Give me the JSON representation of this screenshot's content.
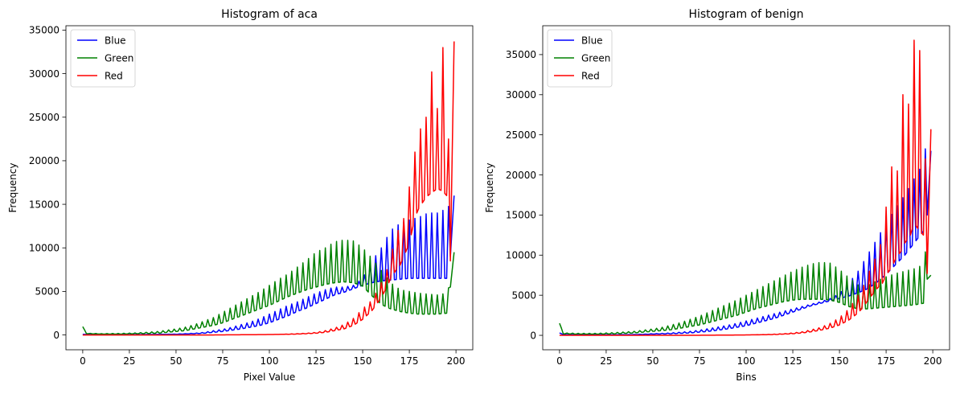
{
  "chart_data": [
    {
      "type": "line",
      "title": "Histogram of aca",
      "xlabel": "Pixel Value",
      "ylabel": "Frequency",
      "xlim": [
        -9,
        209
      ],
      "ylim": [
        -1700,
        35500
      ],
      "xticks": [
        0,
        25,
        50,
        75,
        100,
        125,
        150,
        175,
        200
      ],
      "yticks": [
        0,
        5000,
        10000,
        15000,
        20000,
        25000,
        30000,
        35000
      ],
      "grid": false,
      "legend": "top-left",
      "series": [
        {
          "name": "Blue",
          "color": "#0000ff",
          "x": [
            0,
            2,
            10,
            20,
            30,
            40,
            50,
            60,
            65,
            70,
            75,
            80,
            85,
            90,
            95,
            100,
            105,
            110,
            115,
            120,
            125,
            130,
            135,
            140,
            145,
            150,
            155,
            160,
            165,
            170,
            175,
            180,
            185,
            190,
            195,
            197,
            199
          ],
          "peak": [
            80,
            50,
            40,
            40,
            40,
            60,
            100,
            200,
            300,
            500,
            650,
            900,
            1200,
            1500,
            1900,
            2400,
            2900,
            3400,
            3800,
            4300,
            4800,
            5200,
            5500,
            5500,
            5700,
            6500,
            8500,
            10000,
            12000,
            12800,
            13200,
            13500,
            14000,
            14000,
            14500,
            15000,
            16000
          ],
          "trough": [
            80,
            50,
            40,
            40,
            40,
            60,
            80,
            150,
            200,
            300,
            400,
            550,
            700,
            900,
            1100,
            1400,
            1800,
            2200,
            2700,
            3100,
            3600,
            4100,
            4600,
            4900,
            5300,
            5700,
            6000,
            6200,
            6300,
            6400,
            6500,
            6500,
            6500,
            6500,
            6500,
            9000,
            16000
          ]
        },
        {
          "name": "Green",
          "color": "#008000",
          "x": [
            0,
            2,
            10,
            20,
            30,
            40,
            50,
            55,
            60,
            65,
            70,
            75,
            80,
            85,
            90,
            95,
            100,
            105,
            110,
            115,
            120,
            125,
            130,
            135,
            140,
            145,
            150,
            155,
            160,
            165,
            170,
            175,
            180,
            185,
            190,
            195,
            197,
            199
          ],
          "peak": [
            950,
            200,
            150,
            180,
            250,
            400,
            700,
            900,
            1200,
            1600,
            2000,
            2600,
            3200,
            3800,
            4400,
            5000,
            5700,
            6400,
            7000,
            7800,
            8600,
            9500,
            10000,
            10700,
            10900,
            10800,
            10000,
            8800,
            7400,
            6000,
            5200,
            5000,
            4800,
            4700,
            4600,
            4800,
            6000,
            9500
          ],
          "trough": [
            950,
            150,
            100,
            100,
            150,
            200,
            400,
            500,
            700,
            900,
            1100,
            1400,
            1800,
            2200,
            2600,
            3000,
            3400,
            3900,
            4400,
            4800,
            5200,
            5500,
            5800,
            6000,
            6100,
            6000,
            5600,
            4500,
            3500,
            3000,
            2700,
            2500,
            2400,
            2400,
            2400,
            2500,
            5500,
            9500
          ]
        },
        {
          "name": "Red",
          "color": "#ff0000",
          "x": [
            0,
            10,
            20,
            30,
            40,
            50,
            60,
            70,
            80,
            90,
            100,
            110,
            115,
            120,
            125,
            130,
            135,
            140,
            145,
            150,
            155,
            160,
            163,
            165,
            168,
            170,
            173,
            175,
            178,
            180,
            183,
            185,
            188,
            190,
            193,
            195,
            197,
            199
          ],
          "peak": [
            0,
            0,
            0,
            0,
            0,
            0,
            0,
            0,
            20,
            30,
            50,
            100,
            150,
            200,
            300,
            500,
            800,
            1200,
            1900,
            3000,
            4000,
            6000,
            7500,
            9000,
            11500,
            12500,
            13800,
            17000,
            21000,
            22000,
            27000,
            23000,
            33800,
            26000,
            33000,
            29000,
            16000,
            33700
          ],
          "trough": [
            0,
            0,
            0,
            0,
            0,
            0,
            0,
            0,
            20,
            30,
            50,
            80,
            100,
            150,
            200,
            300,
            500,
            700,
            1100,
            1800,
            2800,
            4300,
            5500,
            6500,
            7500,
            8000,
            9500,
            10500,
            13500,
            14500,
            15500,
            16000,
            16500,
            16800,
            16500,
            16000,
            8500,
            33700
          ]
        }
      ]
    },
    {
      "type": "line",
      "title": "Histogram of benign",
      "xlabel": "Bins",
      "ylabel": "Frequency",
      "xlim": [
        -9,
        209
      ],
      "ylim": [
        -1800,
        38600
      ],
      "xticks": [
        0,
        25,
        50,
        75,
        100,
        125,
        150,
        175,
        200
      ],
      "yticks": [
        0,
        5000,
        10000,
        15000,
        20000,
        25000,
        30000,
        35000
      ],
      "grid": false,
      "legend": "top-left",
      "series": [
        {
          "name": "Blue",
          "color": "#0000ff",
          "x": [
            0,
            2,
            10,
            20,
            30,
            40,
            50,
            60,
            65,
            70,
            75,
            80,
            85,
            90,
            95,
            100,
            105,
            110,
            115,
            120,
            125,
            130,
            135,
            140,
            145,
            150,
            155,
            160,
            165,
            170,
            175,
            180,
            185,
            190,
            195,
            197,
            199
          ],
          "peak": [
            300,
            100,
            80,
            80,
            80,
            100,
            200,
            300,
            400,
            500,
            650,
            850,
            1050,
            1250,
            1500,
            1800,
            2100,
            2400,
            2700,
            3000,
            3300,
            3600,
            3900,
            4200,
            4600,
            5200,
            6500,
            8000,
            10000,
            12000,
            14000,
            15800,
            17500,
            19500,
            21500,
            25000,
            23000
          ],
          "trough": [
            300,
            80,
            60,
            60,
            60,
            80,
            150,
            200,
            250,
            300,
            400,
            500,
            650,
            800,
            1000,
            1200,
            1500,
            1800,
            2100,
            2500,
            2900,
            3300,
            3700,
            4000,
            4300,
            4600,
            4900,
            5300,
            5800,
            6600,
            7600,
            8800,
            10000,
            11500,
            13000,
            15000,
            23000
          ]
        },
        {
          "name": "Green",
          "color": "#008000",
          "x": [
            0,
            2,
            10,
            20,
            30,
            40,
            50,
            55,
            60,
            65,
            70,
            75,
            80,
            85,
            90,
            95,
            100,
            105,
            110,
            115,
            120,
            125,
            130,
            135,
            140,
            145,
            150,
            155,
            160,
            165,
            170,
            175,
            180,
            185,
            190,
            195,
            197,
            199
          ],
          "peak": [
            1500,
            300,
            250,
            250,
            350,
            500,
            800,
            1000,
            1300,
            1600,
            2000,
            2400,
            2900,
            3400,
            3900,
            4400,
            5000,
            5600,
            6200,
            6800,
            7400,
            8000,
            8500,
            8900,
            9100,
            9000,
            8200,
            7200,
            6300,
            6200,
            6800,
            7300,
            7700,
            8000,
            8300,
            8800,
            12000,
            7500
          ],
          "trough": [
            1500,
            200,
            150,
            150,
            200,
            300,
            500,
            600,
            700,
            900,
            1100,
            1300,
            1600,
            1900,
            2200,
            2500,
            2900,
            3300,
            3600,
            3900,
            4200,
            4400,
            4500,
            4500,
            4500,
            4400,
            4100,
            3600,
            3300,
            3300,
            3400,
            3500,
            3600,
            3700,
            3800,
            4000,
            7000,
            7500
          ]
        },
        {
          "name": "Red",
          "color": "#ff0000",
          "x": [
            0,
            10,
            20,
            30,
            40,
            50,
            60,
            70,
            80,
            90,
            100,
            110,
            115,
            120,
            125,
            130,
            135,
            140,
            145,
            150,
            155,
            160,
            163,
            165,
            168,
            170,
            173,
            175,
            178,
            180,
            183,
            185,
            188,
            190,
            193,
            195,
            197,
            199
          ],
          "peak": [
            0,
            0,
            0,
            0,
            0,
            0,
            0,
            0,
            20,
            30,
            50,
            100,
            150,
            200,
            300,
            450,
            700,
            1000,
            1500,
            2200,
            3300,
            5000,
            6200,
            7500,
            9000,
            10000,
            12000,
            16000,
            21000,
            17000,
            27500,
            32500,
            27000,
            36800,
            35500,
            21000,
            23000,
            25700
          ],
          "trough": [
            0,
            0,
            0,
            0,
            0,
            0,
            0,
            0,
            20,
            30,
            50,
            80,
            100,
            150,
            200,
            300,
            450,
            650,
            900,
            1300,
            1900,
            2800,
            3600,
            4300,
            5200,
            5800,
            6500,
            7500,
            8500,
            9500,
            10500,
            11500,
            12500,
            14000,
            13000,
            12500,
            7700,
            25700
          ]
        }
      ]
    }
  ]
}
